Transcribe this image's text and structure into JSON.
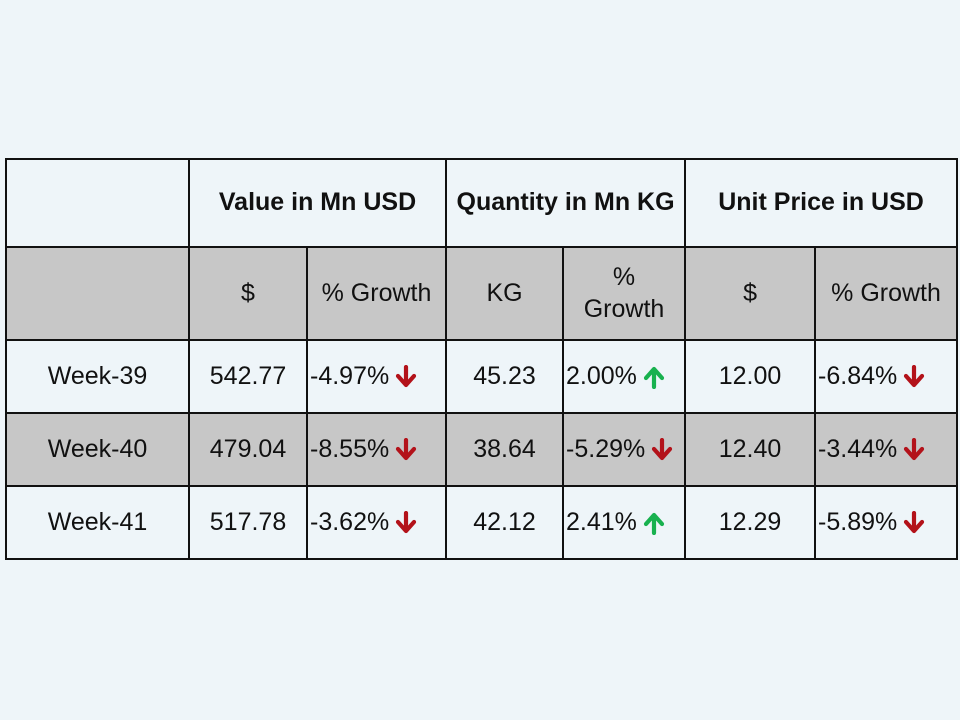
{
  "colors": {
    "background": "#eef5f9",
    "shaded_row": "#c7c7c7",
    "down_arrow": "#b3121a",
    "up_arrow": "#18b14f"
  },
  "header": {
    "groups": [
      "Value in Mn USD",
      "Quantity in Mn KG",
      "Unit Price in USD"
    ],
    "subheaders": [
      "$",
      "% Growth",
      "KG",
      "% Growth",
      "$",
      "% Growth"
    ]
  },
  "rows": [
    {
      "week": "Week-39",
      "value": "542.77",
      "value_growth": "-4.97%",
      "value_dir": "down-arrow-icon",
      "qty": "45.23",
      "qty_growth": "2.00%",
      "qty_dir": "up-arrow-icon",
      "price": "12.00",
      "price_growth": "-6.84%",
      "price_dir": "down-arrow-icon"
    },
    {
      "week": "Week-40",
      "value": "479.04",
      "value_growth": "-8.55%",
      "value_dir": "down-arrow-icon",
      "qty": "38.64",
      "qty_growth": "-5.29%",
      "qty_dir": "down-arrow-icon",
      "price": "12.40",
      "price_growth": "-3.44%",
      "price_dir": "down-arrow-icon"
    },
    {
      "week": "Week-41",
      "value": "517.78",
      "value_growth": "-3.62%",
      "value_dir": "down-arrow-icon",
      "qty": "42.12",
      "qty_growth": "2.41%",
      "qty_dir": "up-arrow-icon",
      "price": "12.29",
      "price_growth": "-5.89%",
      "price_dir": "down-arrow-icon"
    }
  ]
}
